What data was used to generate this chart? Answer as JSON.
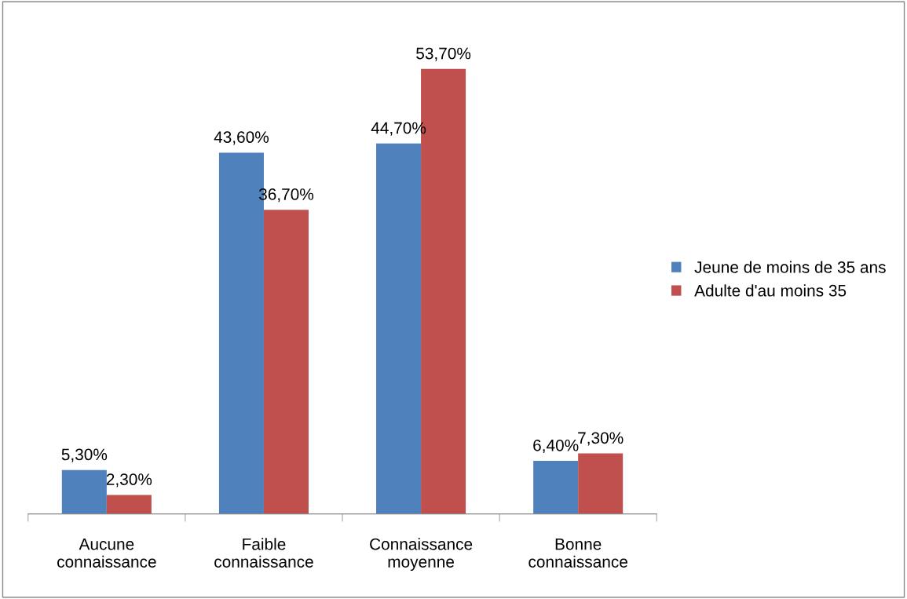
{
  "chart_data": {
    "type": "bar",
    "categories": [
      "Aucune\nconnaissance",
      "Faible\nconnaissance",
      "Connaissance\nmoyenne",
      "Bonne\nconnaissance"
    ],
    "series": [
      {
        "name": "Jeune de moins de 35 ans",
        "color": "#4f81bd",
        "values": [
          5.3,
          43.6,
          44.7,
          6.4
        ],
        "value_labels": [
          "5,30%",
          "43,60%",
          "44,70%",
          "6,40%"
        ]
      },
      {
        "name": "Adulte d'au moins 35",
        "color": "#c0504d",
        "values": [
          2.3,
          36.7,
          53.7,
          7.3
        ],
        "value_labels": [
          "2,30%",
          "36,70%",
          "53,70%",
          "7,30%"
        ]
      }
    ],
    "legend": "right",
    "grid": false
  }
}
